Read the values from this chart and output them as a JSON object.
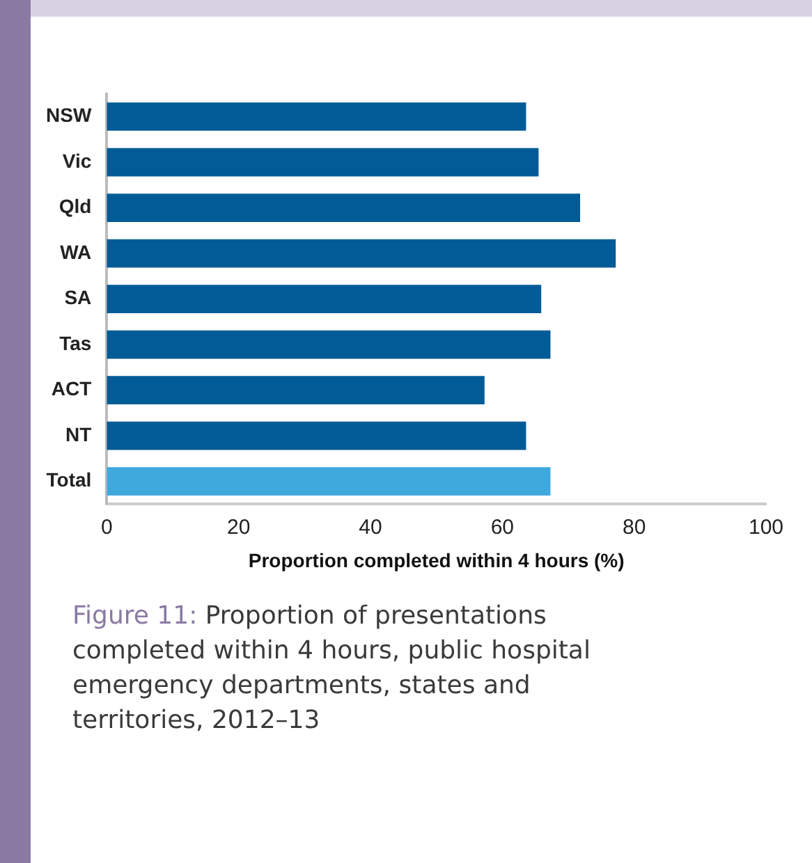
{
  "chart_data": {
    "type": "bar",
    "orientation": "horizontal",
    "categories": [
      "NSW",
      "Vic",
      "Qld",
      "WA",
      "SA",
      "Tas",
      "ACT",
      "NT",
      "Total"
    ],
    "values": [
      63.6,
      65.5,
      71.8,
      77.2,
      65.9,
      67.3,
      57.3,
      63.6,
      67.3
    ],
    "colors": [
      "#005b96",
      "#005b96",
      "#005b96",
      "#005b96",
      "#005b96",
      "#005b96",
      "#005b96",
      "#005b96",
      "#3fa9de"
    ],
    "xlim": [
      0,
      100
    ],
    "xticks": [
      0,
      20,
      40,
      60,
      80,
      100
    ],
    "xlabel": "Proportion completed within 4 hours (%)",
    "grid": false,
    "legend": false,
    "annotations": [
      "Figure 11: Proportion of presentations completed within 4 hours, public hospital emergency departments, states and territories, 2012–13"
    ]
  }
}
